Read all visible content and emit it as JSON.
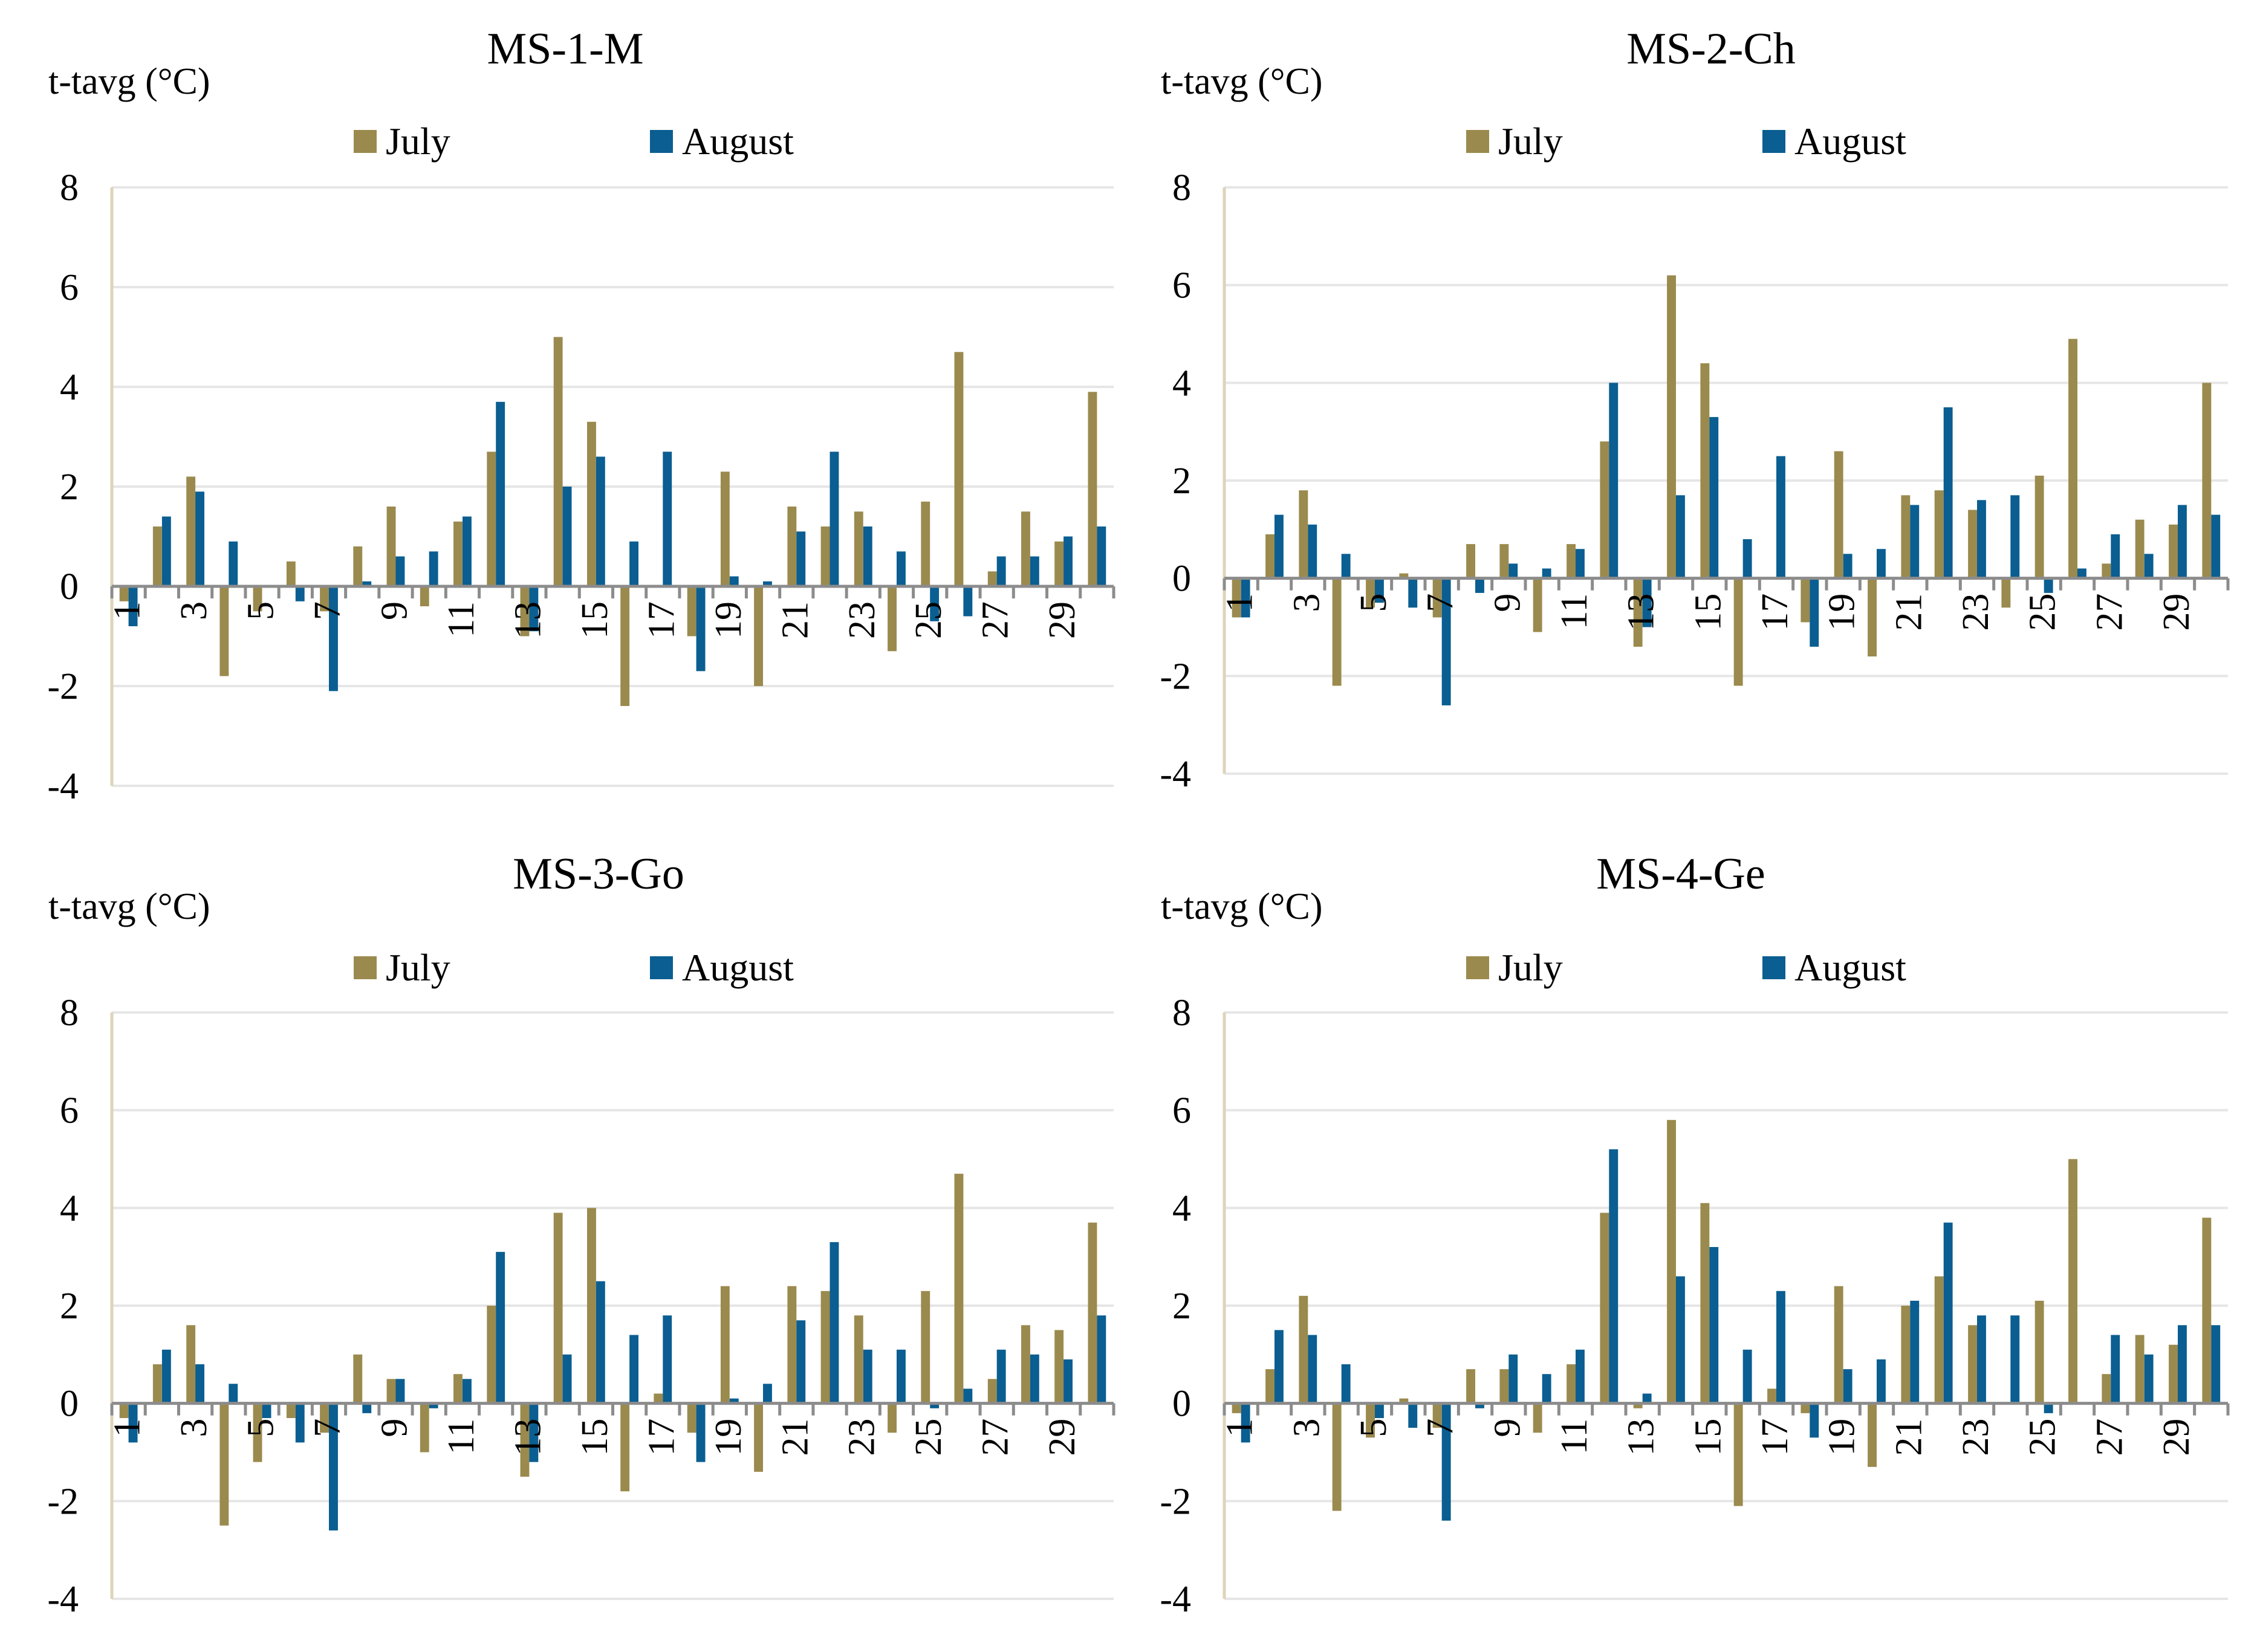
{
  "colors": {
    "july": "#9B8A4E",
    "august": "#0A5E91",
    "grid": "#e6e6e6",
    "axis": "#ddd3b8",
    "zero": "#8c8c8c"
  },
  "chart_data": [
    {
      "type": "bar",
      "title": "MS-1-M",
      "ylabel": "t-tavg (°C)",
      "ylim": [
        -4,
        8
      ],
      "yticks": [
        "8",
        "6",
        "4",
        "2",
        "0",
        "-2",
        "-4"
      ],
      "categories": [
        "1",
        "2",
        "3",
        "4",
        "5",
        "6",
        "7",
        "8",
        "9",
        "10",
        "11",
        "12",
        "13",
        "14",
        "15",
        "16",
        "17",
        "18",
        "19",
        "20",
        "21",
        "22",
        "23",
        "24",
        "25",
        "26",
        "27",
        "28",
        "29",
        "30"
      ],
      "xtick_labels": [
        "1",
        "3",
        "5",
        "7",
        "9",
        "11",
        "13",
        "15",
        "17",
        "19",
        "21",
        "23",
        "25",
        "27",
        "29"
      ],
      "series": [
        {
          "name": "July",
          "values": [
            -0.3,
            1.2,
            2.2,
            -1.8,
            -0.5,
            0.5,
            -0.5,
            0.8,
            1.6,
            -0.4,
            1.3,
            2.7,
            -1.0,
            5.0,
            3.3,
            -2.4,
            0.0,
            -1.0,
            2.3,
            -2.0,
            1.6,
            1.2,
            1.5,
            -1.3,
            1.7,
            4.7,
            0.3,
            1.5,
            0.9,
            3.9
          ]
        },
        {
          "name": "August",
          "values": [
            -0.8,
            1.4,
            1.9,
            0.9,
            0.0,
            -0.3,
            -2.1,
            0.1,
            0.6,
            0.7,
            1.4,
            3.7,
            -0.9,
            2.0,
            2.6,
            0.9,
            2.7,
            -1.7,
            0.2,
            0.1,
            1.1,
            2.7,
            1.2,
            0.7,
            -0.7,
            -0.6,
            0.6,
            0.6,
            1.0,
            1.2
          ]
        }
      ]
    },
    {
      "type": "bar",
      "title": "MS-2-Ch",
      "ylabel": "t-tavg (°C)",
      "ylim": [
        -4,
        8
      ],
      "yticks": [
        "8",
        "6",
        "4",
        "2",
        "0",
        "-2",
        "-4"
      ],
      "categories": [
        "1",
        "2",
        "3",
        "4",
        "5",
        "6",
        "7",
        "8",
        "9",
        "10",
        "11",
        "12",
        "13",
        "14",
        "15",
        "16",
        "17",
        "18",
        "19",
        "20",
        "21",
        "22",
        "23",
        "24",
        "25",
        "26",
        "27",
        "28",
        "29",
        "30"
      ],
      "xtick_labels": [
        "1",
        "3",
        "5",
        "7",
        "9",
        "11",
        "13",
        "15",
        "17",
        "19",
        "21",
        "23",
        "25",
        "27",
        "29"
      ],
      "series": [
        {
          "name": "July",
          "values": [
            -0.8,
            0.9,
            1.8,
            -2.2,
            -0.6,
            0.1,
            -0.8,
            0.7,
            0.7,
            -1.1,
            0.7,
            2.8,
            -1.4,
            6.2,
            4.4,
            -2.2,
            0.0,
            -0.9,
            2.6,
            -1.6,
            1.7,
            1.8,
            1.4,
            -0.6,
            2.1,
            4.9,
            0.3,
            1.2,
            1.1,
            4.0
          ]
        },
        {
          "name": "August",
          "values": [
            -0.8,
            1.3,
            1.1,
            0.5,
            -0.5,
            -0.6,
            -2.6,
            -0.3,
            0.3,
            0.2,
            0.6,
            4.0,
            -1.0,
            1.7,
            3.3,
            0.8,
            2.5,
            -1.4,
            0.5,
            0.6,
            1.5,
            3.5,
            1.6,
            1.7,
            -0.3,
            0.2,
            0.9,
            0.5,
            1.5,
            1.3
          ]
        }
      ]
    },
    {
      "type": "bar",
      "title": "MS-3-Go",
      "ylabel": "t-tavg (°C)",
      "ylim": [
        -4,
        8
      ],
      "yticks": [
        "8",
        "6",
        "4",
        "2",
        "0",
        "-2",
        "-4"
      ],
      "categories": [
        "1",
        "2",
        "3",
        "4",
        "5",
        "6",
        "7",
        "8",
        "9",
        "10",
        "11",
        "12",
        "13",
        "14",
        "15",
        "16",
        "17",
        "18",
        "19",
        "20",
        "21",
        "22",
        "23",
        "24",
        "25",
        "26",
        "27",
        "28",
        "29",
        "30"
      ],
      "xtick_labels": [
        "1",
        "3",
        "5",
        "7",
        "9",
        "11",
        "13",
        "15",
        "17",
        "19",
        "21",
        "23",
        "25",
        "27",
        "29"
      ],
      "series": [
        {
          "name": "July",
          "values": [
            -0.3,
            0.8,
            1.6,
            -2.5,
            -1.2,
            -0.3,
            -0.6,
            1.0,
            0.5,
            -1.0,
            0.6,
            2.0,
            -1.5,
            3.9,
            4.0,
            -1.8,
            0.2,
            -0.6,
            2.4,
            -1.4,
            2.4,
            2.3,
            1.8,
            -0.6,
            2.3,
            4.7,
            0.5,
            1.6,
            1.5,
            3.7
          ]
        },
        {
          "name": "August",
          "values": [
            -0.8,
            1.1,
            0.8,
            0.4,
            -0.3,
            -0.8,
            -2.6,
            -0.2,
            0.5,
            -0.1,
            0.5,
            3.1,
            -1.2,
            1.0,
            2.5,
            1.4,
            1.8,
            -1.2,
            0.1,
            0.4,
            1.7,
            3.3,
            1.1,
            1.1,
            -0.1,
            0.3,
            1.1,
            1.0,
            0.9,
            1.8
          ]
        }
      ]
    },
    {
      "type": "bar",
      "title": "MS-4-Ge",
      "ylabel": "t-tavg (°C)",
      "ylim": [
        -4,
        8
      ],
      "yticks": [
        "8",
        "6",
        "4",
        "2",
        "0",
        "-2",
        "-4"
      ],
      "categories": [
        "1",
        "2",
        "3",
        "4",
        "5",
        "6",
        "7",
        "8",
        "9",
        "10",
        "11",
        "12",
        "13",
        "14",
        "15",
        "16",
        "17",
        "18",
        "19",
        "20",
        "21",
        "22",
        "23",
        "24",
        "25",
        "26",
        "27",
        "28",
        "29",
        "30"
      ],
      "xtick_labels": [
        "1",
        "3",
        "5",
        "7",
        "9",
        "11",
        "13",
        "15",
        "17",
        "19",
        "21",
        "23",
        "25",
        "27",
        "29"
      ],
      "series": [
        {
          "name": "July",
          "values": [
            -0.2,
            0.7,
            2.2,
            -2.2,
            -0.7,
            0.1,
            -0.5,
            0.7,
            0.7,
            -0.6,
            0.8,
            3.9,
            -0.1,
            5.8,
            4.1,
            -2.1,
            0.3,
            -0.2,
            2.4,
            -1.3,
            2.0,
            2.6,
            1.6,
            0.0,
            2.1,
            5.0,
            0.6,
            1.4,
            1.2,
            3.8
          ]
        },
        {
          "name": "August",
          "values": [
            -0.8,
            1.5,
            1.4,
            0.8,
            -0.3,
            -0.5,
            -2.4,
            -0.1,
            1.0,
            0.6,
            1.1,
            5.2,
            0.2,
            2.6,
            3.2,
            1.1,
            2.3,
            -0.7,
            0.7,
            0.9,
            2.1,
            3.7,
            1.8,
            1.8,
            -0.2,
            0.0,
            1.4,
            1.0,
            1.6,
            1.6
          ]
        }
      ]
    }
  ]
}
